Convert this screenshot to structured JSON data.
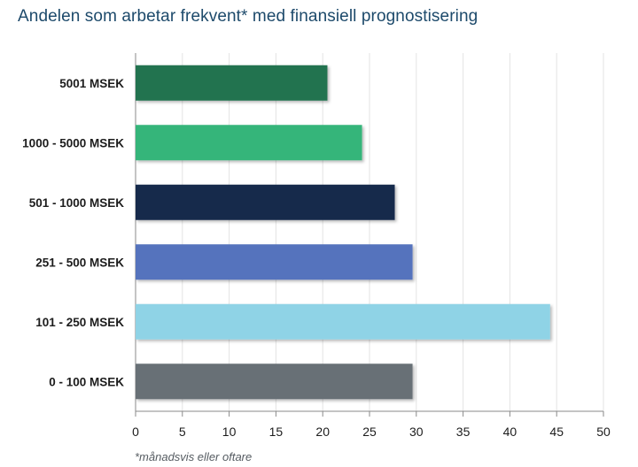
{
  "chart_data": {
    "type": "bar",
    "orientation": "horizontal",
    "title": "Andelen som arbetar frekvent* med finansiell prognostisering",
    "categories": [
      "5001 MSEK",
      "1000 - 5000 MSEK",
      "501 - 1000 MSEK",
      "251 - 500 MSEK",
      "101 - 250 MSEK",
      "0 - 100 MSEK"
    ],
    "values": [
      20.5,
      24.2,
      27.7,
      29.6,
      44.3,
      29.6
    ],
    "colors": [
      "#21734f",
      "#34b57a",
      "#142c4b",
      "#5473bd",
      "#8fd3e6",
      "#676f76"
    ],
    "xticks": [
      0,
      5,
      10,
      15,
      20,
      25,
      30,
      35,
      40,
      45,
      50
    ],
    "xlim": [
      0,
      50
    ],
    "xlabel": "",
    "ylabel": "",
    "grid": "vertical",
    "footnote": "*månadsvis eller oftare"
  }
}
